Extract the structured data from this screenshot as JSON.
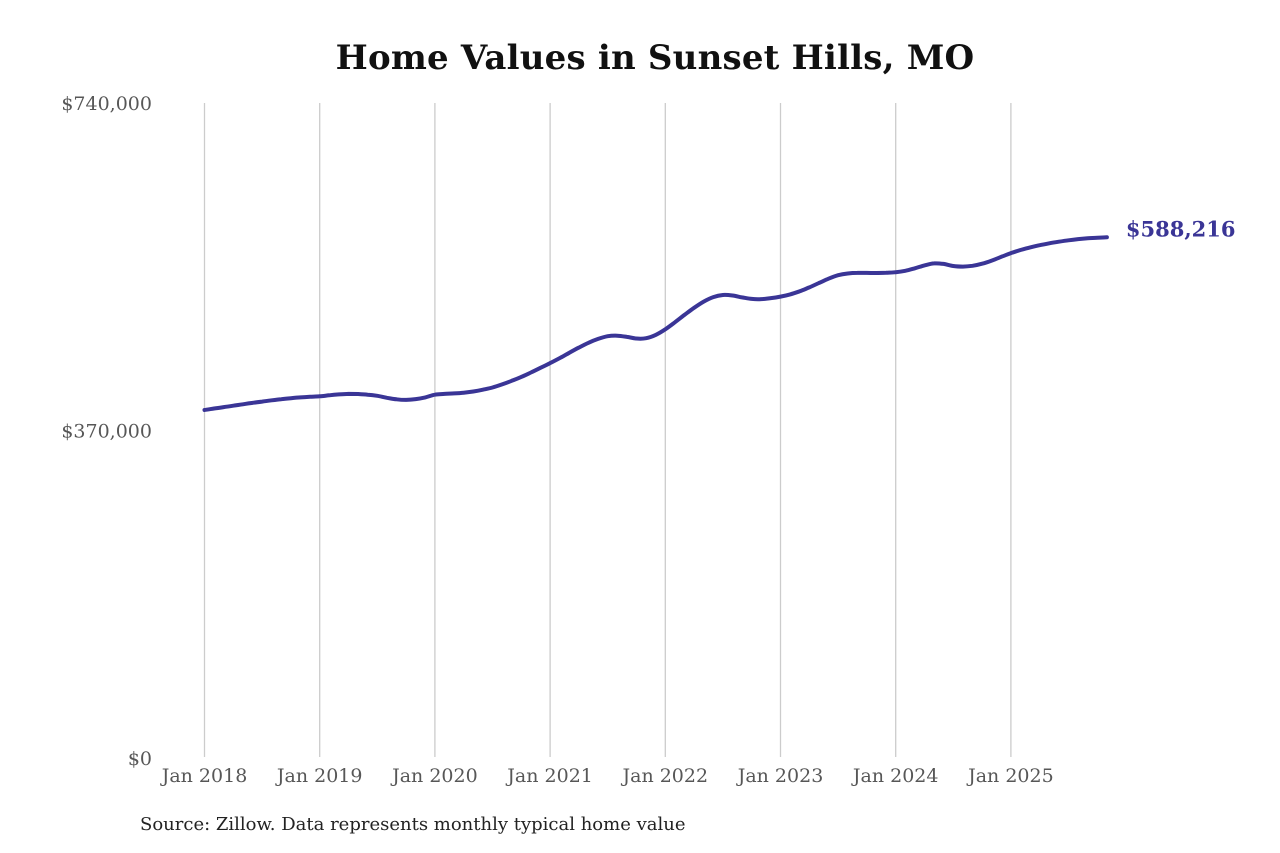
{
  "page": {
    "background": "#ffffff"
  },
  "chart": {
    "title": "Home Values in Sunset Hills, MO",
    "source_note": "Source: Zillow. Data represents monthly typical home value",
    "end_label": "$588,216",
    "colors": {
      "line": "#3a3596",
      "end_label": "#3a3596",
      "axis_label": "#575757",
      "gridline": "#cccccc",
      "title": "#111111",
      "source": "#222222"
    }
  },
  "chart_data": {
    "type": "line",
    "title": "Home Values in Sunset Hills, MO",
    "xlabel": "",
    "ylabel": "",
    "ylim": [
      0,
      740000
    ],
    "grid": "vertical-only",
    "legend": "none",
    "x_start_month": "2018-01",
    "x_end_month": "2025-11",
    "y_ticks": [
      {
        "label": "$740,000",
        "value": 740000
      },
      {
        "label": "$370,000",
        "value": 370000
      },
      {
        "label": "$0",
        "value": 0
      }
    ],
    "x_ticks": [
      {
        "label": "Jan 2018",
        "month_index": 0
      },
      {
        "label": "Jan 2019",
        "month_index": 12
      },
      {
        "label": "Jan 2020",
        "month_index": 24
      },
      {
        "label": "Jan 2021",
        "month_index": 36
      },
      {
        "label": "Jan 2022",
        "month_index": 48
      },
      {
        "label": "Jan 2023",
        "month_index": 60
      },
      {
        "label": "Jan 2024",
        "month_index": 72
      },
      {
        "label": "Jan 2025",
        "month_index": 84
      }
    ],
    "series": [
      {
        "name": "Monthly typical home value",
        "final_value": 588216,
        "monthly_values": [
          393200,
          394800,
          396400,
          398000,
          399600,
          401200,
          402700,
          404100,
          405400,
          406500,
          407400,
          408100,
          408600,
          409800,
          410800,
          411300,
          411200,
          410500,
          409200,
          407000,
          405200,
          404600,
          405500,
          407400,
          410500,
          411300,
          411900,
          412700,
          414100,
          416100,
          418600,
          422100,
          426100,
          430500,
          435500,
          440800,
          446100,
          451800,
          457800,
          463700,
          469100,
          473500,
          476500,
          477100,
          475800,
          473900,
          474300,
          478000,
          484300,
          492200,
          500600,
          508600,
          515600,
          520700,
          523100,
          522500,
          520400,
          518700,
          518400,
          519600,
          521300,
          523800,
          527300,
          531700,
          536600,
          541500,
          545400,
          547400,
          548100,
          548000,
          547900,
          548200,
          548800,
          550400,
          553200,
          556500,
          558800,
          558200,
          555800,
          555200,
          556100,
          558400,
          561900,
          566200,
          570400,
          573900,
          576900,
          579400,
          581500,
          583300,
          584900,
          586200,
          587200,
          587800,
          588216
        ]
      }
    ]
  }
}
